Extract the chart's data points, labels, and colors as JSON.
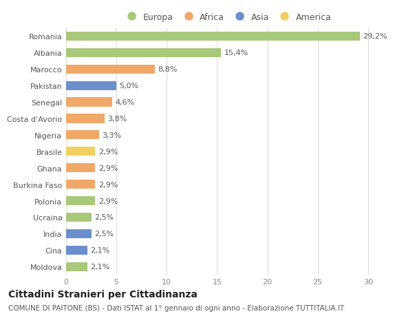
{
  "countries": [
    "Romania",
    "Albania",
    "Marocco",
    "Pakistan",
    "Senegal",
    "Costa d'Avorio",
    "Nigeria",
    "Brasile",
    "Ghana",
    "Burkina Faso",
    "Polonia",
    "Ucraina",
    "India",
    "Cina",
    "Moldova"
  ],
  "values": [
    29.2,
    15.4,
    8.8,
    5.0,
    4.6,
    3.8,
    3.3,
    2.9,
    2.9,
    2.9,
    2.9,
    2.5,
    2.5,
    2.1,
    2.1
  ],
  "labels": [
    "29,2%",
    "15,4%",
    "8,8%",
    "5,0%",
    "4,6%",
    "3,8%",
    "3,3%",
    "2,9%",
    "2,9%",
    "2,9%",
    "2,9%",
    "2,5%",
    "2,5%",
    "2,1%",
    "2,1%"
  ],
  "continents": [
    "Europa",
    "Europa",
    "Africa",
    "Asia",
    "Africa",
    "Africa",
    "Africa",
    "America",
    "Africa",
    "Africa",
    "Europa",
    "Europa",
    "Asia",
    "Asia",
    "Europa"
  ],
  "continent_colors": {
    "Europa": "#a8c87a",
    "Africa": "#f0a868",
    "Asia": "#6b8fcc",
    "America": "#f0d060"
  },
  "legend_order": [
    "Europa",
    "Africa",
    "Asia",
    "America"
  ],
  "title": "Cittadini Stranieri per Cittadinanza",
  "subtitle": "COMUNE DI PAITONE (BS) - Dati ISTAT al 1° gennaio di ogni anno - Elaborazione TUTTITALIA.IT",
  "xlim": [
    0,
    32
  ],
  "xticks": [
    0,
    5,
    10,
    15,
    20,
    25,
    30
  ],
  "bg_color": "#ffffff",
  "grid_color": "#dddddd",
  "bar_height": 0.55,
  "label_fontsize": 8,
  "tick_fontsize": 8,
  "title_fontsize": 10,
  "subtitle_fontsize": 7.5,
  "legend_fontsize": 9
}
